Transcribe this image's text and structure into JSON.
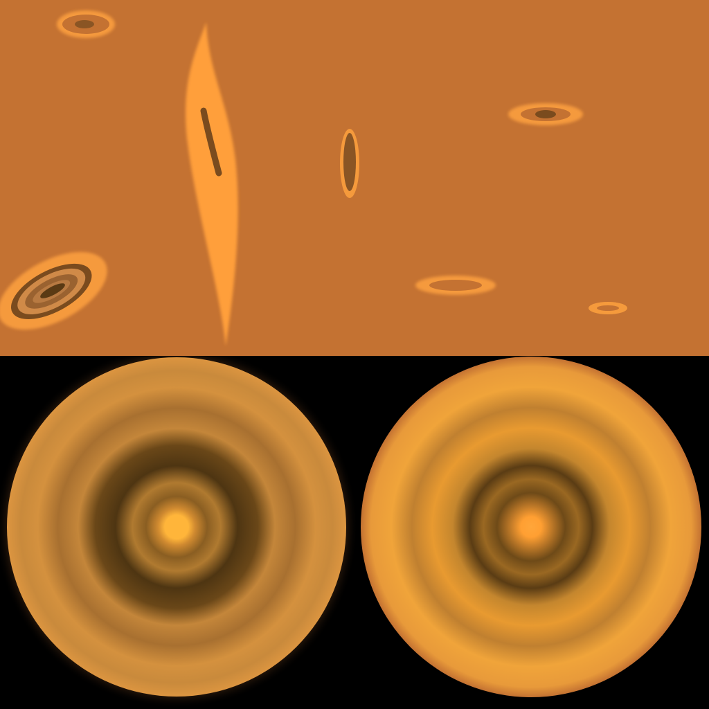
{
  "texture_atlas": {
    "regions": [
      "bark-side",
      "end-cap-left",
      "end-cap-right"
    ],
    "colors": {
      "bark_base": "#c47232",
      "knot_light": "#f59a3c",
      "knot_dark": "#7a4b1e",
      "ring_dark": "#4e3512",
      "ring_light": "#e89f3c",
      "core": "#ffb53a",
      "background": "#000000"
    }
  }
}
